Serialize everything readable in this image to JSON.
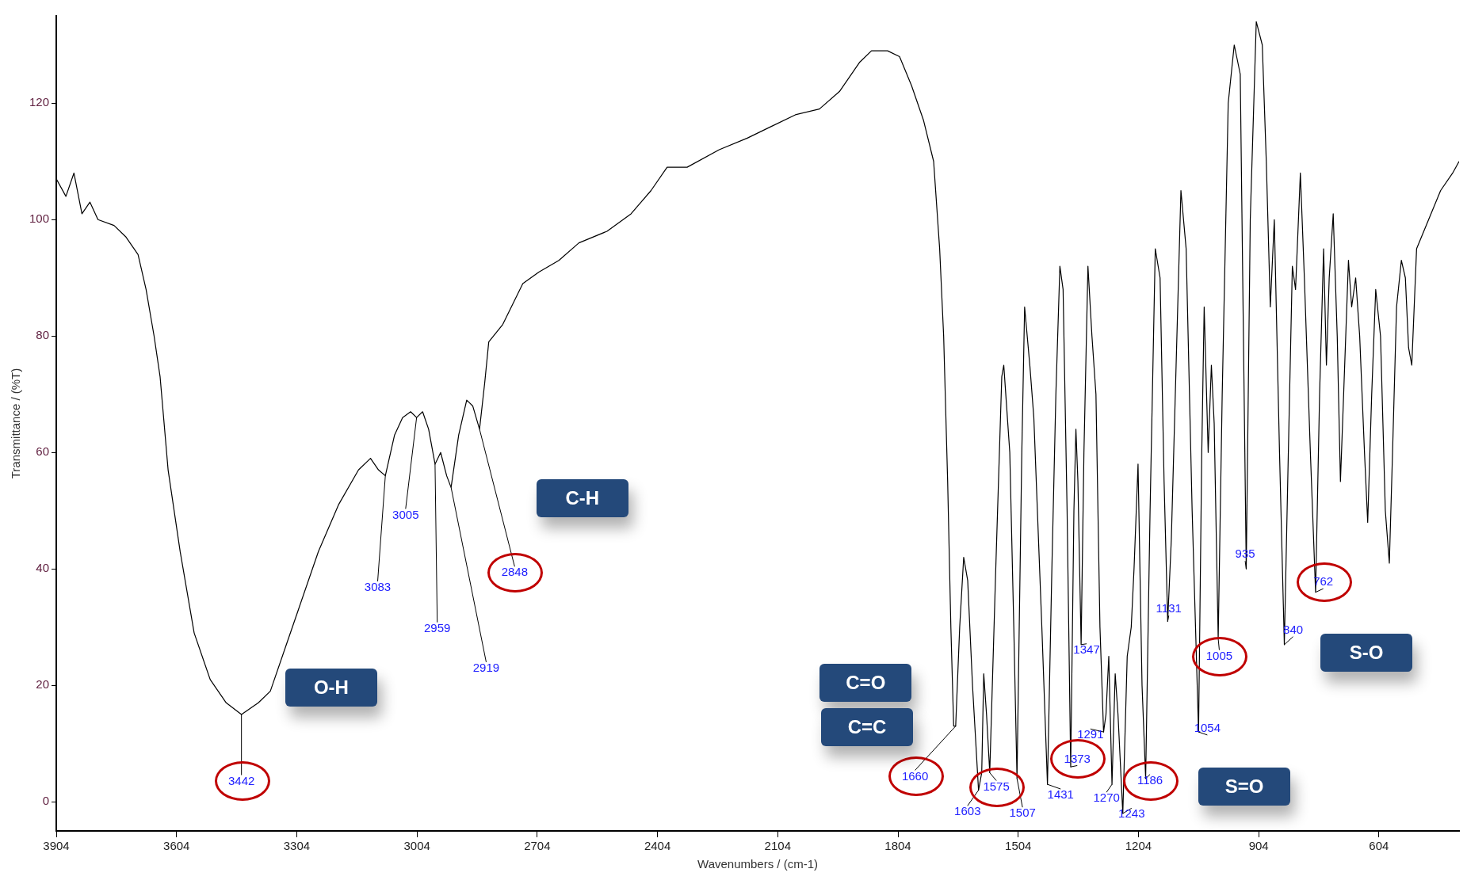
{
  "chart_data": {
    "type": "line",
    "xlabel": "Wavenumbers / (cm-1)",
    "ylabel": "Transmittance / (%T)",
    "color": "#000000",
    "xlim": [
      3904,
      404
    ],
    "xticks": [
      3904,
      3604,
      3304,
      3004,
      2704,
      2404,
      2104,
      1804,
      1504,
      1204,
      904,
      604
    ],
    "ylim": [
      -5,
      135
    ],
    "yticks": [
      0,
      20,
      40,
      60,
      80,
      100,
      120
    ],
    "x": [
      3904,
      3880,
      3860,
      3840,
      3820,
      3800,
      3760,
      3730,
      3700,
      3680,
      3660,
      3645,
      3625,
      3595,
      3560,
      3520,
      3480,
      3442,
      3400,
      3370,
      3330,
      3300,
      3250,
      3200,
      3150,
      3120,
      3100,
      3083,
      3060,
      3040,
      3020,
      3005,
      2990,
      2975,
      2959,
      2945,
      2930,
      2919,
      2900,
      2880,
      2865,
      2848,
      2835,
      2825,
      2790,
      2740,
      2700,
      2650,
      2600,
      2530,
      2470,
      2420,
      2380,
      2330,
      2250,
      2180,
      2120,
      2060,
      2000,
      1950,
      1900,
      1870,
      1830,
      1800,
      1770,
      1740,
      1715,
      1700,
      1690,
      1680,
      1672,
      1665,
      1660,
      1650,
      1640,
      1630,
      1618,
      1603,
      1595,
      1590,
      1583,
      1575,
      1560,
      1545,
      1540,
      1525,
      1515,
      1507,
      1495,
      1488,
      1475,
      1465,
      1445,
      1431,
      1420,
      1410,
      1400,
      1392,
      1382,
      1373,
      1365,
      1360,
      1355,
      1347,
      1340,
      1330,
      1320,
      1310,
      1300,
      1291,
      1285,
      1278,
      1270,
      1262,
      1255,
      1243,
      1232,
      1222,
      1215,
      1205,
      1195,
      1186,
      1175,
      1162,
      1150,
      1140,
      1131,
      1122,
      1110,
      1098,
      1085,
      1070,
      1054,
      1046,
      1040,
      1030,
      1022,
      1015,
      1005,
      995,
      980,
      965,
      950,
      935,
      925,
      910,
      895,
      885,
      875,
      865,
      852,
      840,
      830,
      820,
      812,
      800,
      790,
      775,
      762,
      752,
      742,
      735,
      728,
      718,
      708,
      700,
      692,
      680,
      672,
      662,
      652,
      640,
      632,
      622,
      612,
      600,
      588,
      578,
      570,
      560,
      548,
      538,
      530,
      522,
      510,
      480,
      450,
      420,
      404
    ],
    "values": [
      107,
      104,
      108,
      101,
      103,
      100,
      99,
      97,
      94,
      88,
      80,
      73,
      57,
      43,
      29,
      21,
      17,
      15,
      17,
      19,
      27,
      33,
      43,
      51,
      57,
      59,
      57,
      56,
      63,
      66,
      67,
      66,
      67,
      64,
      58,
      60,
      56,
      54,
      63,
      69,
      68,
      64,
      72,
      79,
      82,
      89,
      91,
      93,
      96,
      98,
      101,
      105,
      109,
      109,
      112,
      114,
      116,
      118,
      119,
      122,
      127,
      129,
      129,
      128,
      123,
      117,
      110,
      95,
      80,
      55,
      30,
      13,
      13,
      30,
      42,
      38,
      20,
      2,
      5,
      22,
      15,
      5,
      40,
      73,
      75,
      60,
      30,
      4,
      60,
      85,
      75,
      66,
      30,
      3,
      40,
      70,
      92,
      88,
      50,
      6,
      50,
      64,
      55,
      27,
      60,
      92,
      80,
      70,
      30,
      12,
      15,
      25,
      3,
      22,
      15,
      -2,
      25,
      30,
      40,
      58,
      20,
      4,
      50,
      95,
      90,
      55,
      31,
      45,
      75,
      105,
      95,
      50,
      12,
      60,
      85,
      60,
      75,
      65,
      28,
      70,
      120,
      130,
      125,
      40,
      100,
      134,
      130,
      110,
      85,
      100,
      60,
      27,
      60,
      92,
      88,
      108,
      90,
      60,
      36,
      70,
      95,
      75,
      90,
      101,
      80,
      55,
      70,
      93,
      85,
      90,
      80,
      60,
      48,
      70,
      88,
      80,
      50,
      41,
      60,
      85,
      93,
      90,
      78,
      75,
      95,
      100,
      105,
      108,
      110
    ],
    "annotations": [
      {
        "text": "3442",
        "x": 3442,
        "y": 15
      },
      {
        "text": "3083",
        "x": 3083,
        "y": 56
      },
      {
        "text": "3005",
        "x": 3005,
        "y": 66
      },
      {
        "text": "2959",
        "x": 2959,
        "y": 58
      },
      {
        "text": "2919",
        "x": 2919,
        "y": 54
      },
      {
        "text": "2848",
        "x": 2848,
        "y": 64
      },
      {
        "text": "1660",
        "x": 1660,
        "y": 13
      },
      {
        "text": "1603",
        "x": 1603,
        "y": 2
      },
      {
        "text": "1575",
        "x": 1575,
        "y": 5
      },
      {
        "text": "1507",
        "x": 1507,
        "y": 4
      },
      {
        "text": "1431",
        "x": 1431,
        "y": 3
      },
      {
        "text": "1373",
        "x": 1373,
        "y": 6
      },
      {
        "text": "1347",
        "x": 1347,
        "y": 27
      },
      {
        "text": "1291",
        "x": 1291,
        "y": 12
      },
      {
        "text": "1270",
        "x": 1270,
        "y": 3
      },
      {
        "text": "1243",
        "x": 1243,
        "y": -2
      },
      {
        "text": "1186",
        "x": 1186,
        "y": 4
      },
      {
        "text": "1131",
        "x": 1131,
        "y": 31
      },
      {
        "text": "1054",
        "x": 1054,
        "y": 12
      },
      {
        "text": "1005",
        "x": 1005,
        "y": 28
      },
      {
        "text": "935",
        "x": 935,
        "y": 40
      },
      {
        "text": "840",
        "x": 840,
        "y": 27
      },
      {
        "text": "762",
        "x": 762,
        "y": 36
      },
      "O-H",
      "C-H",
      "C=O",
      "C=C",
      "S=O",
      "S-O"
    ]
  }
}
